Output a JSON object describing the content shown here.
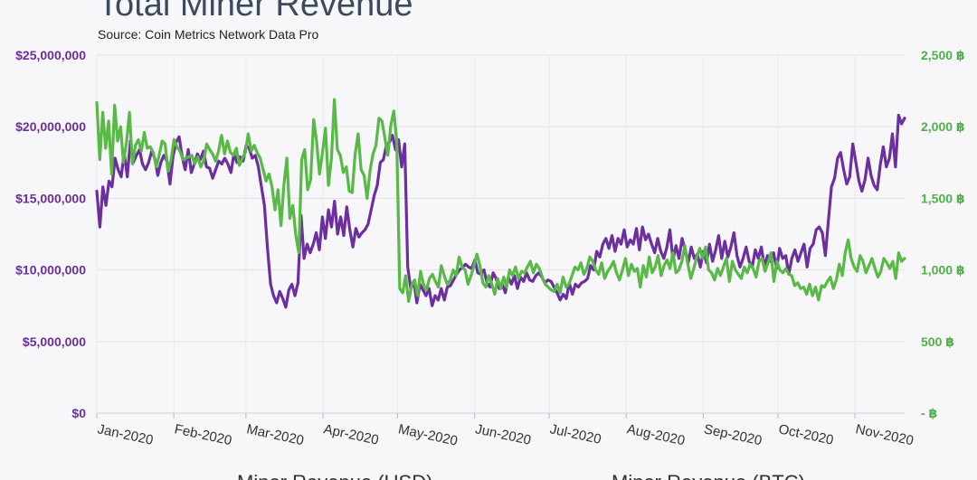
{
  "title": "Total Miner Revenue",
  "subtitle": "Source: Coin Metrics Network Data Pro",
  "chart_data": {
    "type": "line",
    "title": "Total Miner Revenue",
    "subtitle": "Source: Coin Metrics Network Data Pro",
    "x_labels": [
      "Jan-2020",
      "Feb-2020",
      "Mar-2020",
      "Apr-2020",
      "May-2020",
      "Jun-2020",
      "Jul-2020",
      "Aug-2020",
      "Sep-2020",
      "Oct-2020",
      "Nov-2020"
    ],
    "y_left": {
      "ticks": [
        "$0",
        "$5,000,000",
        "$10,000,000",
        "$15,000,000",
        "$20,000,000",
        "$25,000,000"
      ],
      "range": [
        0,
        25000000
      ]
    },
    "y_right": {
      "ticks": [
        "- ฿",
        "500 ฿",
        "1,000 ฿",
        "1,500 ฿",
        "2,000 ฿",
        "2,500 ฿"
      ],
      "range": [
        0,
        2500
      ]
    },
    "grid": true,
    "legend_position": "bottom",
    "series": [
      {
        "name": "Miner Revenue (USD)",
        "axis": "left",
        "color": "#6b2fa0",
        "x_start": "2020-01-01",
        "x_end": "2020-11-21",
        "values": [
          15500000,
          13000000,
          15800000,
          14500000,
          16200000,
          15800000,
          17800000,
          17000000,
          16500000,
          18200000,
          16500000,
          19000000,
          17500000,
          18000000,
          18400000,
          17400000,
          17000000,
          17500000,
          18300000,
          17800000,
          16600000,
          17500000,
          18000000,
          17600000,
          16000000,
          17900000,
          18900000,
          19300000,
          17900000,
          17000000,
          18400000,
          16800000,
          17400000,
          18100000,
          17700000,
          18300000,
          17200000,
          17100000,
          16400000,
          17000000,
          17600000,
          17400000,
          17800000,
          17400000,
          16800000,
          18100000,
          17500000,
          17900000,
          17600000,
          18700000,
          18500000,
          17800000,
          18000000,
          17200000,
          15800000,
          14500000,
          11500000,
          9000000,
          8200000,
          7700000,
          8500000,
          8000000,
          7400000,
          8600000,
          9000000,
          8200000,
          9100000,
          13800000,
          10800000,
          11800000,
          11200000,
          11800000,
          12600000,
          11400000,
          13700000,
          12200000,
          14200000,
          13000000,
          14800000,
          12500000,
          13700000,
          12400000,
          14400000,
          12800000,
          11600000,
          12900000,
          12300000,
          12600000,
          12800000,
          13200000,
          14200000,
          15200000,
          15900000,
          17500000,
          17700000,
          18700000,
          18900000,
          19400000,
          18400000,
          19100000,
          17200000,
          18800000,
          10200000,
          8700000,
          9200000,
          7700000,
          9000000,
          8600000,
          8200000,
          8700000,
          7500000,
          8200000,
          7900000,
          8700000,
          7900000,
          8800000,
          8900000,
          9300000,
          9700000,
          10000000,
          10200000,
          10400000,
          10200000,
          10100000,
          10700000,
          9800000,
          9700000,
          10000000,
          9100000,
          8800000,
          9800000,
          9400000,
          8700000,
          9000000,
          8400000,
          9500000,
          9000000,
          9600000,
          8700000,
          9500000,
          9200000,
          9800000,
          9300000,
          9200000,
          9600000,
          9800000,
          9500000,
          9100000,
          9300000,
          9200000,
          8800000,
          8400000,
          7900000,
          8300000,
          8000000,
          9100000,
          8300000,
          9000000,
          8800000,
          9100000,
          9200000,
          9400000,
          10300000,
          10000000,
          11300000,
          10900000,
          11800000,
          12200000,
          11500000,
          12400000,
          11300000,
          12200000,
          11800000,
          12800000,
          11600000,
          12100000,
          11800000,
          12900000,
          11400000,
          13000000,
          12100000,
          12500000,
          11800000,
          11200000,
          12200000,
          11300000,
          10800000,
          11600000,
          12800000,
          10700000,
          11700000,
          10800000,
          12200000,
          11400000,
          10500000,
          11600000,
          10800000,
          11100000,
          10200000,
          11300000,
          10500000,
          11800000,
          10600000,
          11400000,
          12400000,
          10800000,
          12000000,
          10900000,
          11600000,
          12600000,
          11000000,
          10200000,
          10800000,
          11600000,
          10600000,
          10200000,
          11400000,
          10800000,
          11600000,
          10200000,
          11000000,
          10600000,
          11200000,
          10100000,
          11500000,
          10800000,
          11000000,
          9700000,
          10800000,
          11400000,
          10600000,
          11200000,
          11800000,
          10200000,
          11500000,
          11800000,
          12800000,
          13000000,
          12600000,
          11000000,
          13500000,
          15800000,
          16400000,
          17800000,
          18200000,
          17000000,
          16000000,
          16500000,
          18800000,
          17500000,
          16200000,
          15500000,
          16300000,
          17800000,
          16600000,
          15900000,
          15600000,
          17300000,
          18600000,
          17200000,
          17800000,
          19500000,
          17200000,
          20800000,
          20200000,
          20600000
        ]
      },
      {
        "name": "Miner Revenue (BTC)",
        "axis": "right",
        "color": "#58b947",
        "x_start": "2020-01-01",
        "x_end": "2020-11-21",
        "values": [
          2170,
          1770,
          2100,
          1850,
          2040,
          1670,
          2150,
          1900,
          2000,
          1750,
          1890,
          2100,
          1740,
          1870,
          1910,
          1830,
          1960,
          1850,
          1860,
          1820,
          1720,
          1800,
          1900,
          1880,
          1690,
          1770,
          1910,
          1860,
          1830,
          1770,
          1780,
          1790,
          1800,
          1740,
          1790,
          1720,
          1760,
          1880,
          1840,
          1810,
          1760,
          1830,
          1940,
          1810,
          1900,
          1820,
          1800,
          1850,
          1730,
          1780,
          1820,
          1950,
          1830,
          1870,
          1820,
          1780,
          1700,
          1620,
          1670,
          1580,
          1420,
          1560,
          1310,
          1590,
          1780,
          1360,
          1450,
          1240,
          1120,
          1770,
          1840,
          1560,
          1630,
          2050,
          1900,
          1670,
          1820,
          1990,
          1590,
          1780,
          2190,
          1840,
          1800,
          1680,
          1720,
          1550,
          1540,
          1810,
          1950,
          1700,
          1660,
          1500,
          1690,
          1810,
          1870,
          2060,
          2040,
          1920,
          1800,
          2010,
          2110,
          1900,
          870,
          840,
          960,
          780,
          890,
          930,
          820,
          990,
          900,
          860,
          940,
          970,
          920,
          880,
          1030,
          960,
          900,
          930,
          1000,
          960,
          1090,
          1020,
          1000,
          900,
          960,
          1030,
          1110,
          1030,
          910,
          880,
          960,
          900,
          830,
          940,
          870,
          950,
          880,
          1000,
          960,
          1020,
          940,
          990,
          980,
          1020,
          1060,
          980,
          1040,
          1010,
          950,
          900,
          880,
          860,
          850,
          900,
          840,
          950,
          880,
          900,
          960,
          1020,
          1000,
          1050,
          970,
          1010,
          1090,
          1060,
          1000,
          970,
          1050,
          940,
          990,
          1020,
          1060,
          980,
          930,
          1000,
          1080,
          960,
          1040,
          990,
          1010,
          880,
          1030,
          950,
          1090,
          980,
          1020,
          1100,
          960,
          1030,
          1070,
          1010,
          1120,
          980,
          1000,
          1060,
          1170,
          1040,
          940,
          1010,
          1090,
          1150,
          1080,
          1160,
          1000,
          980,
          930,
          1010,
          960,
          1020,
          1080,
          920,
          1060,
          1000,
          970,
          940,
          1020,
          980,
          1040,
          1010,
          950,
          1060,
          1080,
          990,
          1050,
          1120,
          920,
          1060,
          1000,
          980,
          1010,
          970,
          960,
          890,
          910,
          870,
          880,
          830,
          900,
          820,
          880,
          790,
          890,
          880,
          920,
          950,
          870,
          930,
          1040,
          960,
          1120,
          1210,
          1080,
          1020,
          990,
          1100,
          1060,
          980,
          1030,
          1080,
          1010,
          950,
          990,
          1080,
          1050,
          1010,
          1060,
          940,
          1120,
          1060,
          1080
        ]
      }
    ]
  },
  "legend": {
    "usd_label": "Miner Revenue (USD)",
    "btc_label": "Miner Revenue (BTC)"
  }
}
